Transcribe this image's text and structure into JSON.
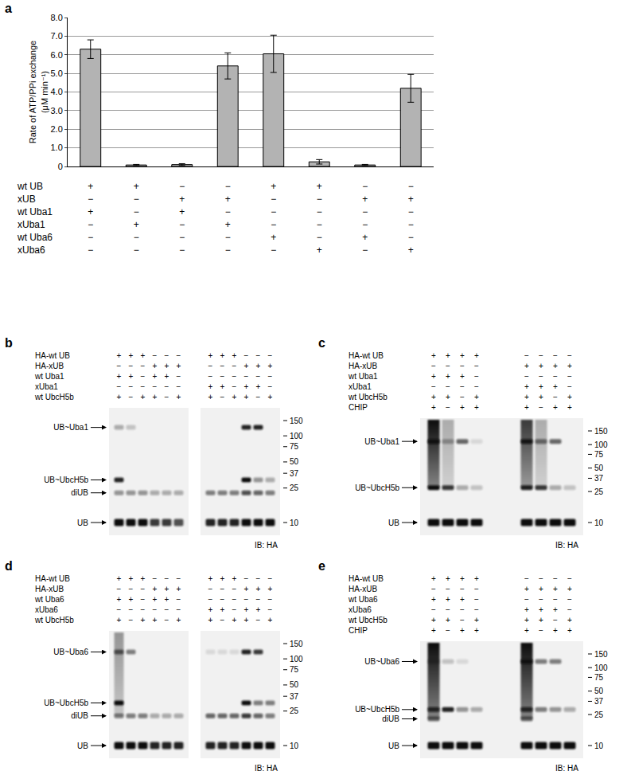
{
  "chart_data": {
    "type": "bar",
    "panel": "a",
    "categories": [
      null,
      null,
      null,
      null,
      null,
      null,
      null,
      null
    ],
    "values": [
      6.3,
      0.08,
      0.1,
      5.4,
      6.05,
      0.25,
      0.08,
      4.2
    ],
    "errors": [
      0.5,
      0.03,
      0.05,
      0.7,
      1.0,
      0.12,
      0.03,
      0.75
    ],
    "color": "#b3b3b3",
    "ylim": [
      0,
      8
    ],
    "yticks": [
      0,
      {
        "value": 1,
        "label": "1.0"
      },
      {
        "value": 2,
        "label": "2.0"
      },
      {
        "value": 3,
        "label": "3.0"
      },
      {
        "value": 4,
        "label": "4.0"
      },
      {
        "value": 5,
        "label": "5.0"
      },
      {
        "value": 6,
        "label": "6.0"
      },
      {
        "value": 7,
        "label": "7.0"
      },
      {
        "value": 8,
        "label": "8.0"
      }
    ],
    "grid": true,
    "y_label": [
      "Rate of ATP/PPi exchange",
      "(μM min⁻¹)"
    ],
    "conditions": [
      {
        "label": "wt UB",
        "signs": [
          "+",
          "+",
          "−",
          "−",
          "+",
          "+",
          "−",
          "−"
        ]
      },
      {
        "label": "xUB",
        "signs": [
          "−",
          "−",
          "+",
          "+",
          "−",
          "−",
          "+",
          "+"
        ]
      },
      {
        "label": "wt Uba1",
        "signs": [
          "+",
          "−",
          "+",
          "−",
          "−",
          "−",
          "−",
          "−"
        ]
      },
      {
        "label": "xUba1",
        "signs": [
          "−",
          "+",
          "−",
          "+",
          "−",
          "−",
          "−",
          "−"
        ]
      },
      {
        "label": "wt Uba6",
        "signs": [
          "−",
          "−",
          "−",
          "−",
          "+",
          "−",
          "+",
          "−"
        ]
      },
      {
        "label": "xUba6",
        "signs": [
          "−",
          "−",
          "−",
          "−",
          "−",
          "+",
          "−",
          "+"
        ]
      }
    ]
  },
  "blots": [
    {
      "panel": "b",
      "rows": [
        "HA-wt UB",
        "HA-xUB",
        "wt Uba1",
        "xUba1",
        "wt UbcH5b"
      ],
      "groups": [
        {
          "signs": [
            [
              "+",
              "+",
              "+",
              "−",
              "−",
              "−"
            ],
            [
              "−",
              "−",
              "−",
              "+",
              "+",
              "+"
            ],
            [
              "+",
              "+",
              "−",
              "+",
              "+",
              "−"
            ],
            [
              "−",
              "−",
              "−",
              "−",
              "−",
              "−"
            ],
            [
              "+",
              "−",
              "+",
              "+",
              "−",
              "+"
            ]
          ],
          "lanes": [
            {
              "bands": [
                0.3,
                0.9,
                0.4,
                1
              ]
            },
            {
              "bands": [
                0.2,
                0,
                0.4,
                1
              ]
            },
            {
              "bands": [
                0,
                0,
                0.4,
                1
              ]
            },
            {
              "bands": [
                0,
                0,
                0.3,
                0.8
              ]
            },
            {
              "bands": [
                0,
                0,
                0.3,
                0.8
              ]
            },
            {
              "bands": [
                0,
                0,
                0.3,
                0.7
              ]
            }
          ]
        },
        {
          "signs": [
            [
              "+",
              "+",
              "+",
              "−",
              "−",
              "−"
            ],
            [
              "−",
              "−",
              "−",
              "+",
              "+",
              "+"
            ],
            [
              "−",
              "−",
              "−",
              "−",
              "−",
              "−"
            ],
            [
              "+",
              "+",
              "−",
              "+",
              "+",
              "−"
            ],
            [
              "+",
              "−",
              "+",
              "+",
              "−",
              "+"
            ]
          ],
          "lanes": [
            {
              "bands": [
                0,
                0,
                0.5,
                0.9
              ]
            },
            {
              "bands": [
                0,
                0,
                0.5,
                0.9
              ]
            },
            {
              "bands": [
                0,
                0,
                0.5,
                0.9
              ]
            },
            {
              "bands": [
                0.9,
                1,
                0.7,
                1
              ]
            },
            {
              "bands": [
                0.9,
                0.4,
                0.6,
                1
              ]
            },
            {
              "bands": [
                0,
                0.3,
                0.5,
                1
              ]
            }
          ]
        }
      ],
      "markers": [
        {
          "label": "UB~Uba1",
          "kda": 125
        },
        {
          "label": "UB~UbcH5b",
          "kda": 31
        },
        {
          "label": "diUB",
          "kda": 22
        },
        {
          "label": "UB",
          "kda": 10
        }
      ],
      "mw": [
        150,
        100,
        75,
        50,
        37,
        25,
        10
      ],
      "antibody": "IB: HA"
    },
    {
      "panel": "c",
      "rows": [
        "HA-wt UB",
        "HA-xUB",
        "wt Uba1",
        "xUba1",
        "wt UbcH5b",
        "CHIP"
      ],
      "groups": [
        {
          "signs": [
            [
              "+",
              "+",
              "+",
              "+"
            ],
            [
              "−",
              "−",
              "−",
              "−"
            ],
            [
              "+",
              "+",
              "+",
              "−"
            ],
            [
              "−",
              "−",
              "−",
              "−"
            ],
            [
              "+",
              "+",
              "−",
              "+"
            ],
            [
              "+",
              "−",
              "+",
              "+"
            ]
          ],
          "lanes": [
            {
              "bands": [
                0.9,
                1,
                1
              ],
              "smear": 1
            },
            {
              "bands": [
                0.3,
                0.8,
                1
              ],
              "smear": 0.3
            },
            {
              "bands": [
                0.6,
                0.3,
                1
              ]
            },
            {
              "bands": [
                0.1,
                0.2,
                1
              ]
            }
          ]
        },
        {
          "signs": [
            [
              "−",
              "−",
              "−",
              "−"
            ],
            [
              "+",
              "+",
              "+",
              "+"
            ],
            [
              "−",
              "−",
              "−",
              "−"
            ],
            [
              "+",
              "+",
              "+",
              "−"
            ],
            [
              "+",
              "+",
              "−",
              "+"
            ],
            [
              "+",
              "−",
              "+",
              "+"
            ]
          ],
          "lanes": [
            {
              "bands": [
                0.9,
                0.9,
                1
              ],
              "smear": 0.8
            },
            {
              "bands": [
                0.5,
                0.8,
                1
              ],
              "smear": 0.3
            },
            {
              "bands": [
                0.6,
                0.3,
                1
              ]
            },
            {
              "bands": [
                0,
                0.2,
                1
              ]
            }
          ]
        }
      ],
      "markers": [
        {
          "label": "UB~Uba1",
          "kda": 110
        },
        {
          "label": "UB~UbcH5b",
          "kda": 28
        },
        {
          "label": "UB",
          "kda": 10
        }
      ],
      "mw": [
        150,
        100,
        75,
        50,
        37,
        25,
        10
      ],
      "antibody": "IB: HA"
    },
    {
      "panel": "d",
      "rows": [
        "HA-wt UB",
        "HA-xUB",
        "wt Uba6",
        "xUba6",
        "wt UbcH5b"
      ],
      "groups": [
        {
          "signs": [
            [
              "+",
              "+",
              "+",
              "−",
              "−",
              "−"
            ],
            [
              "−",
              "−",
              "−",
              "+",
              "+",
              "+"
            ],
            [
              "+",
              "+",
              "−",
              "+",
              "+",
              "−"
            ],
            [
              "−",
              "−",
              "−",
              "−",
              "−",
              "−"
            ],
            [
              "+",
              "−",
              "+",
              "+",
              "−",
              "+"
            ]
          ],
          "lanes": [
            {
              "bands": [
                0.6,
                1,
                0.5,
                1
              ],
              "smear": 0.4
            },
            {
              "bands": [
                0.5,
                0,
                0.5,
                1
              ]
            },
            {
              "bands": [
                0,
                0,
                0.5,
                1
              ]
            },
            {
              "bands": [
                0,
                0,
                0.3,
                0.9
              ]
            },
            {
              "bands": [
                0,
                0,
                0.3,
                0.9
              ]
            },
            {
              "bands": [
                0,
                0,
                0.3,
                0.9
              ]
            }
          ]
        },
        {
          "signs": [
            [
              "+",
              "+",
              "+",
              "−",
              "−",
              "−"
            ],
            [
              "−",
              "−",
              "−",
              "+",
              "+",
              "+"
            ],
            [
              "−",
              "−",
              "−",
              "−",
              "−",
              "−"
            ],
            [
              "+",
              "+",
              "−",
              "+",
              "+",
              "−"
            ],
            [
              "+",
              "−",
              "+",
              "+",
              "−",
              "+"
            ]
          ],
          "lanes": [
            {
              "bands": [
                0.1,
                0,
                0.6,
                0.9
              ]
            },
            {
              "bands": [
                0.1,
                0,
                0.6,
                0.9
              ]
            },
            {
              "bands": [
                0.1,
                0,
                0.6,
                0.9
              ]
            },
            {
              "bands": [
                0.9,
                1,
                0.8,
                1
              ]
            },
            {
              "bands": [
                0.8,
                0.5,
                0.6,
                1
              ]
            },
            {
              "bands": [
                0,
                0.5,
                0.5,
                1
              ]
            }
          ]
        }
      ],
      "markers": [
        {
          "label": "UB~Uba6",
          "kda": 120
        },
        {
          "label": "UB~UbcH5b",
          "kda": 31
        },
        {
          "label": "diUB",
          "kda": 22
        },
        {
          "label": "UB",
          "kda": 10
        }
      ],
      "mw": [
        150,
        100,
        75,
        50,
        37,
        25,
        10
      ],
      "antibody": "IB: HA"
    },
    {
      "panel": "e",
      "rows": [
        "HA-wt UB",
        "HA-xUB",
        "wt Uba6",
        "xUba6",
        "wt UbcH5b",
        "CHIP"
      ],
      "groups": [
        {
          "signs": [
            [
              "+",
              "+",
              "+",
              "+"
            ],
            [
              "−",
              "−",
              "−",
              "−"
            ],
            [
              "+",
              "+",
              "+",
              "−"
            ],
            [
              "−",
              "−",
              "−",
              "−"
            ],
            [
              "+",
              "+",
              "−",
              "+"
            ],
            [
              "+",
              "−",
              "+",
              "+"
            ]
          ],
          "lanes": [
            {
              "bands": [
                0.3,
                0.8,
                0.6,
                1
              ],
              "smear": 1
            },
            {
              "bands": [
                0.2,
                0.9,
                0,
                1
              ]
            },
            {
              "bands": [
                0.1,
                0.4,
                0,
                1
              ]
            },
            {
              "bands": [
                0,
                0.3,
                0,
                1
              ]
            }
          ]
        },
        {
          "signs": [
            [
              "−",
              "−",
              "−",
              "−"
            ],
            [
              "+",
              "+",
              "+",
              "+"
            ],
            [
              "−",
              "−",
              "−",
              "−"
            ],
            [
              "+",
              "+",
              "+",
              "−"
            ],
            [
              "+",
              "+",
              "−",
              "+"
            ],
            [
              "+",
              "−",
              "+",
              "+"
            ]
          ],
          "lanes": [
            {
              "bands": [
                0.9,
                0.8,
                0.6,
                1
              ],
              "smear": 1
            },
            {
              "bands": [
                0.5,
                0.5,
                0,
                1
              ]
            },
            {
              "bands": [
                0.5,
                0.4,
                0,
                1
              ]
            },
            {
              "bands": [
                0,
                0.3,
                0,
                1
              ]
            }
          ]
        }
      ],
      "markers": [
        {
          "label": "UB~Uba6",
          "kda": 120
        },
        {
          "label": "UB~UbcH5b",
          "kda": 29
        },
        {
          "label": "diUB",
          "kda": 22
        },
        {
          "label": "UB",
          "kda": 10
        }
      ],
      "mw": [
        150,
        100,
        75,
        50,
        37,
        25,
        10
      ],
      "antibody": "IB: HA"
    }
  ]
}
